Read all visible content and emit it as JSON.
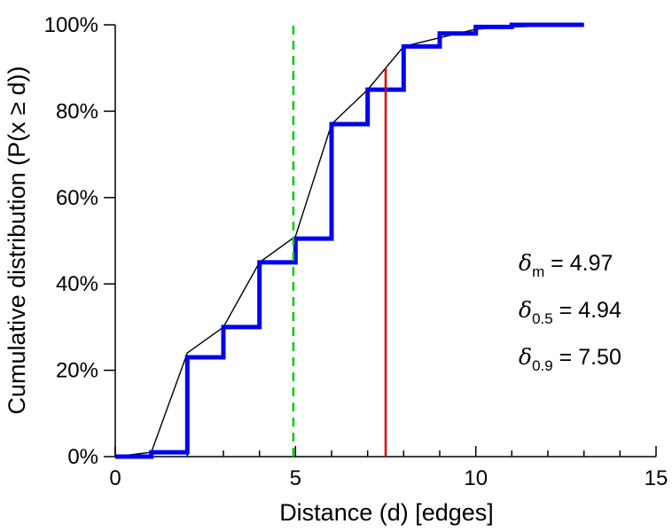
{
  "chart_data": {
    "type": "line",
    "title": "",
    "xlabel": "Distance (d) [edges]",
    "ylabel": "Cumulative distribution (P(x ≥ d))",
    "xlim": [
      0,
      15
    ],
    "ylim": [
      0,
      100
    ],
    "xticks_major": [
      0,
      5,
      10,
      15
    ],
    "xtick_labels": [
      "0",
      "5",
      "10",
      "15"
    ],
    "xticks_minor_step": 1,
    "yticks": [
      0,
      20,
      40,
      60,
      80,
      100
    ],
    "ytick_labels": [
      "0%",
      "20%",
      "40%",
      "60%",
      "80%",
      "100%"
    ],
    "grid": false,
    "legend": "none",
    "series": [
      {
        "name": "interpolated-cdf-line",
        "type": "line",
        "color": "#000000",
        "width": 1.4,
        "points": [
          [
            0,
            0
          ],
          [
            1,
            1
          ],
          [
            2,
            24
          ],
          [
            3,
            30
          ],
          [
            4,
            45
          ],
          [
            5,
            51
          ],
          [
            6,
            77
          ],
          [
            7,
            85
          ],
          [
            8,
            95
          ],
          [
            9,
            97
          ],
          [
            10,
            99
          ],
          [
            11,
            99.5
          ],
          [
            13,
            100
          ]
        ]
      },
      {
        "name": "empirical-cdf-steps",
        "type": "step-after",
        "color": "#0000ee",
        "width": 5,
        "x_end": 13,
        "points": [
          [
            0,
            0
          ],
          [
            1,
            1
          ],
          [
            2,
            23
          ],
          [
            3,
            30
          ],
          [
            4,
            45
          ],
          [
            5,
            50.5
          ],
          [
            6,
            77
          ],
          [
            7,
            85
          ],
          [
            8,
            95
          ],
          [
            9,
            98
          ],
          [
            10,
            99.5
          ],
          [
            11,
            100
          ]
        ]
      }
    ],
    "vlines": [
      {
        "name": "median-vline",
        "x": 4.94,
        "y0": 0,
        "y1": 100,
        "color": "#00cc00",
        "dash": "10 7",
        "width": 2.5
      },
      {
        "name": "p90-vline",
        "x": 7.5,
        "y0": 0,
        "y1": 90,
        "color": "#d40000",
        "dash": "",
        "width": 2.5
      }
    ],
    "annotations": [
      {
        "symbol": "δ",
        "subscript": "m",
        "text": "= 4.97"
      },
      {
        "symbol": "δ",
        "subscript": "0.5",
        "text": "= 4.94"
      },
      {
        "symbol": "δ",
        "subscript": "0.9",
        "text": "= 7.50"
      }
    ]
  }
}
